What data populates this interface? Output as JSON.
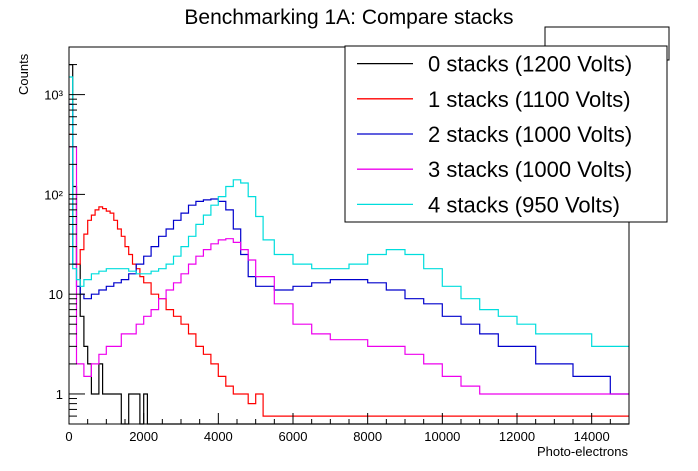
{
  "chart_data": {
    "type": "line",
    "title": "Benchmarking 1A: Compare stacks",
    "xlabel": "Photo-electrons",
    "ylabel": "Counts",
    "xlim": [
      0,
      15000
    ],
    "ylim": [
      0.5,
      3000
    ],
    "yscale": "log",
    "grid": false,
    "legend_position": "top-right",
    "x_ticks": [
      0,
      2000,
      4000,
      6000,
      8000,
      10000,
      12000,
      14000
    ],
    "x_tick_labels": [
      "0",
      "2000",
      "4000",
      "6000",
      "8000",
      "10000",
      "12000",
      "14000"
    ],
    "y_ticks": [
      1,
      10,
      100,
      1000
    ],
    "y_tick_labels": [
      "1",
      "10",
      "10²",
      "10³"
    ],
    "series": [
      {
        "name": "0 stacks (1200 Volts)",
        "color": "#000000",
        "x": [
          0,
          100,
          200,
          300,
          400,
          500,
          600,
          700,
          800,
          900,
          1000,
          1100,
          1200,
          1300,
          1400,
          1500,
          1600,
          1700,
          1800,
          1900,
          2000,
          2100
        ],
        "values": [
          2000,
          120,
          20,
          6,
          3,
          2,
          1,
          1,
          2,
          1,
          1,
          1,
          1,
          1,
          0.5,
          0.5,
          1,
          1,
          1,
          0.5,
          1,
          0.5
        ]
      },
      {
        "name": "1 stacks (1100 Volts)",
        "color": "#ff0000",
        "x": [
          0,
          100,
          200,
          300,
          400,
          500,
          600,
          700,
          800,
          900,
          1000,
          1100,
          1200,
          1300,
          1400,
          1500,
          1600,
          1700,
          1800,
          1900,
          2000,
          2200,
          2400,
          2600,
          2800,
          3000,
          3200,
          3400,
          3600,
          3800,
          4000,
          4200,
          4400,
          4600,
          4800,
          5000,
          5200
        ],
        "values": [
          400,
          30,
          20,
          28,
          40,
          55,
          62,
          70,
          75,
          72,
          68,
          65,
          55,
          45,
          38,
          30,
          25,
          20,
          18,
          15,
          13,
          10,
          9,
          7,
          6,
          5,
          4,
          3,
          2.5,
          2,
          1.5,
          1.2,
          1,
          1,
          0.8,
          1,
          0.6
        ]
      },
      {
        "name": "2 stacks (1000 Volts)",
        "color": "#0000cc",
        "x": [
          0,
          100,
          200,
          300,
          400,
          600,
          800,
          1000,
          1200,
          1400,
          1600,
          1800,
          2000,
          2200,
          2400,
          2600,
          2800,
          3000,
          3200,
          3400,
          3600,
          3800,
          4000,
          4200,
          4400,
          4600,
          4800,
          5000,
          5500,
          6000,
          6500,
          7000,
          7500,
          8000,
          8500,
          9000,
          9500,
          10000,
          10500,
          11000,
          11500,
          12000,
          12500,
          13000,
          13500,
          14000,
          14500,
          15000
        ],
        "values": [
          800,
          20,
          12,
          10,
          9,
          10,
          11,
          12,
          13,
          14,
          16,
          20,
          24,
          30,
          38,
          45,
          55,
          65,
          78,
          85,
          88,
          90,
          85,
          70,
          45,
          25,
          15,
          12,
          11,
          12,
          13,
          14,
          14,
          13,
          11,
          9,
          8,
          6,
          5,
          4,
          3,
          3,
          2,
          2,
          1.5,
          1.5,
          1,
          1
        ]
      },
      {
        "name": "3 stacks (1000 Volts)",
        "color": "#ee00ee",
        "x": [
          0,
          200,
          400,
          600,
          800,
          1000,
          1200,
          1400,
          1600,
          1800,
          2000,
          2200,
          2400,
          2600,
          2800,
          3000,
          3200,
          3400,
          3600,
          3800,
          4000,
          4200,
          4400,
          4600,
          4800,
          5000,
          5500,
          6000,
          6500,
          7000,
          7500,
          8000,
          8500,
          9000,
          9500,
          10000,
          10500,
          11000
        ],
        "values": [
          300,
          2,
          1.5,
          2,
          2.5,
          3,
          3,
          4,
          4,
          5,
          6,
          7,
          9,
          11,
          13,
          16,
          20,
          24,
          28,
          32,
          35,
          36,
          33,
          28,
          22,
          15,
          8,
          5,
          4,
          3.5,
          3.5,
          3,
          3,
          2.5,
          2,
          1.5,
          1.2,
          1
        ]
      },
      {
        "name": "4 stacks (950 Volts)",
        "color": "#00dddd",
        "x": [
          0,
          100,
          200,
          300,
          400,
          600,
          800,
          1000,
          1200,
          1400,
          1600,
          1800,
          2000,
          2200,
          2400,
          2600,
          2800,
          3000,
          3200,
          3400,
          3600,
          3800,
          4000,
          4200,
          4400,
          4600,
          4800,
          5000,
          5200,
          5500,
          6000,
          6500,
          7000,
          7500,
          8000,
          8500,
          9000,
          9500,
          10000,
          10500,
          11000,
          11500,
          12000,
          12500,
          13000,
          13500,
          14000,
          14500,
          15000
        ],
        "values": [
          1500,
          18,
          14,
          12,
          14,
          16,
          17,
          18,
          18,
          18,
          17,
          16,
          16,
          17,
          18,
          20,
          24,
          30,
          38,
          50,
          62,
          78,
          95,
          120,
          140,
          130,
          95,
          60,
          35,
          25,
          20,
          18,
          18,
          20,
          25,
          28,
          25,
          18,
          12,
          9,
          7,
          6,
          5,
          4,
          4,
          4,
          3,
          3,
          3
        ]
      }
    ]
  }
}
